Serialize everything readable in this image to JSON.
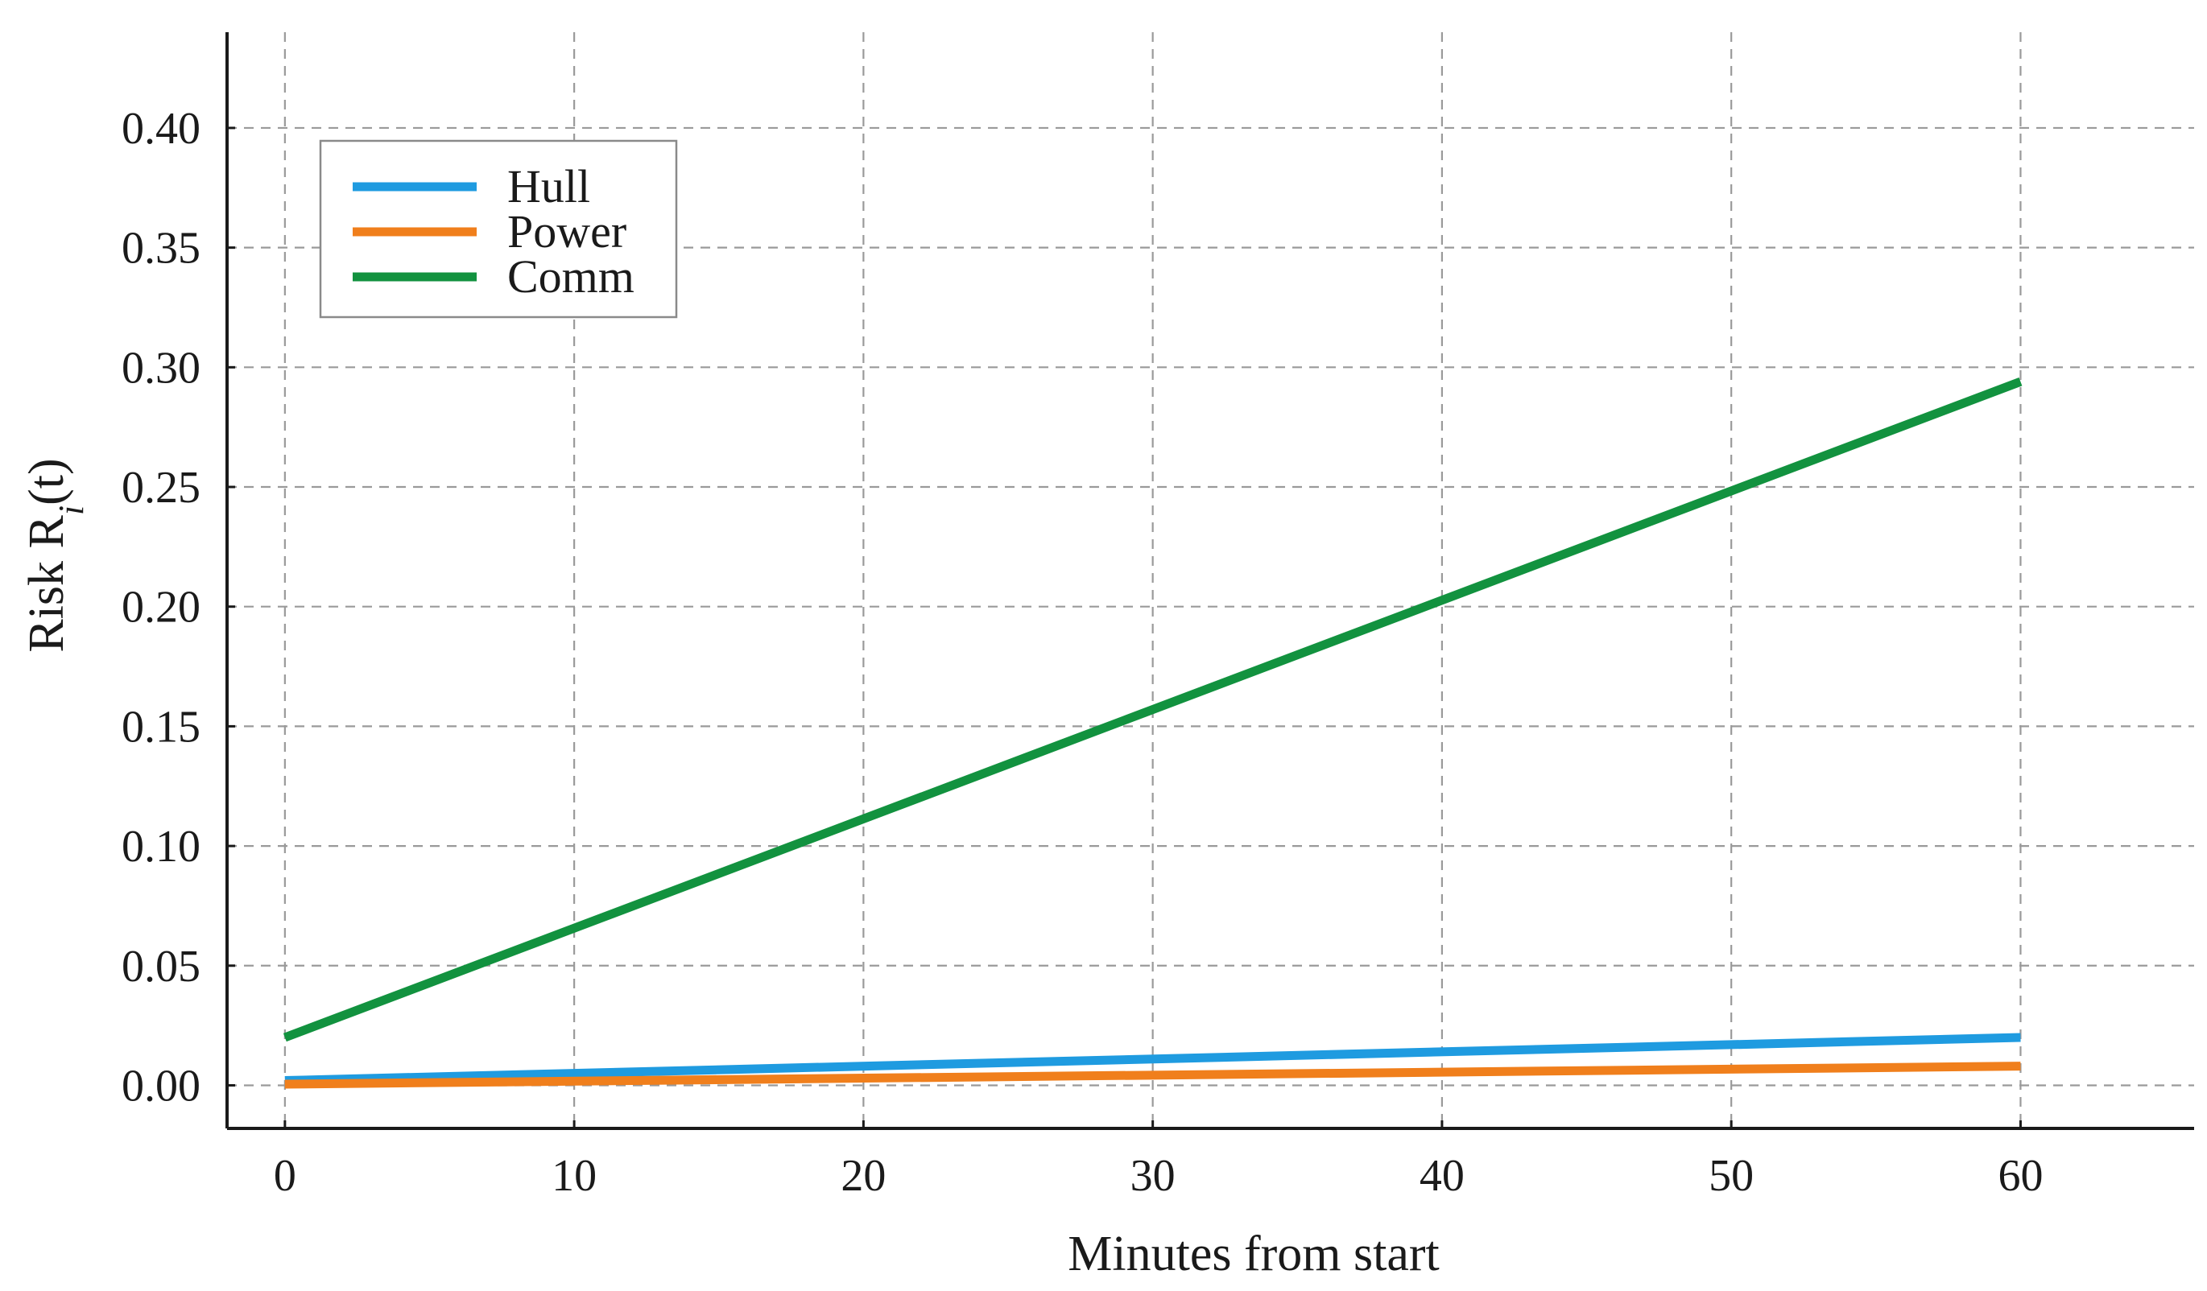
{
  "chart_data": {
    "type": "line",
    "title": "",
    "xlabel": "Minutes from start",
    "ylabel": "Risk R",
    "ylabel_subscript": "i",
    "ylabel_suffix": "(t)",
    "xlim": [
      -2,
      66
    ],
    "ylim": [
      -0.018,
      0.44
    ],
    "xticks": [
      0,
      10,
      20,
      30,
      40,
      50,
      60
    ],
    "xtick_labels": [
      "0",
      "10",
      "20",
      "30",
      "40",
      "50",
      "60"
    ],
    "yticks": [
      0.0,
      0.05,
      0.1,
      0.15,
      0.2,
      0.25,
      0.3,
      0.35,
      0.4
    ],
    "ytick_labels": [
      "0.00",
      "0.05",
      "0.10",
      "0.15",
      "0.20",
      "0.25",
      "0.30",
      "0.35",
      "0.40"
    ],
    "grid": true,
    "legend_position": "top-left",
    "x": [
      0,
      60
    ],
    "series": [
      {
        "name": "Hull",
        "color": "#1f9be0",
        "values": [
          0.002,
          0.02
        ]
      },
      {
        "name": "Power",
        "color": "#f07f1c",
        "values": [
          0.0005,
          0.008
        ]
      },
      {
        "name": "Comm",
        "color": "#12923f",
        "values": [
          0.02,
          0.294
        ]
      }
    ]
  }
}
